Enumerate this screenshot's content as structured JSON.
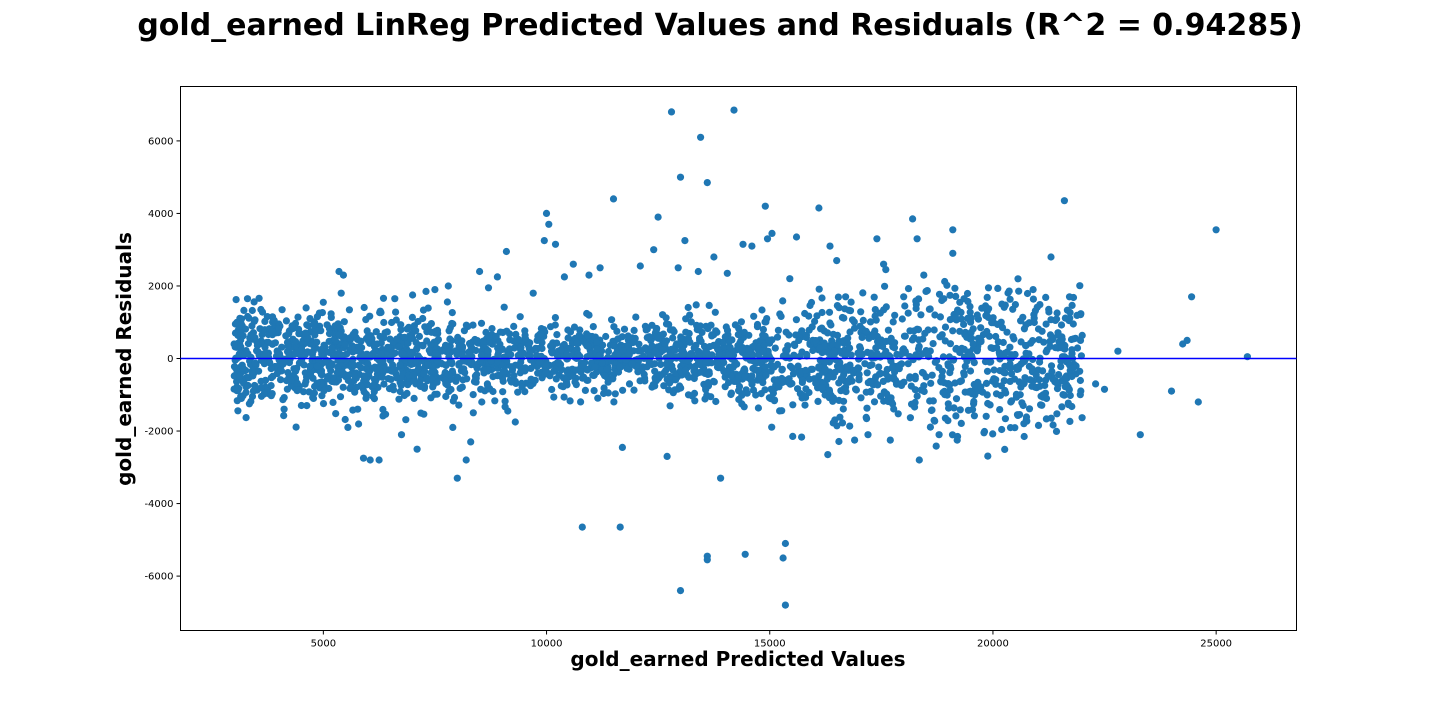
{
  "chart_data": {
    "type": "scatter",
    "title": "gold_earned LinReg Predicted Values and Residuals (R^2 = 0.94285)",
    "xlabel": "gold_earned Predicted Values",
    "ylabel": "gold_earned Residuals",
    "xlim": [
      1800,
      26800
    ],
    "ylim": [
      -7500,
      7500
    ],
    "xticks": [
      5000,
      10000,
      15000,
      20000,
      25000
    ],
    "yticks": [
      -6000,
      -4000,
      -2000,
      0,
      2000,
      4000,
      6000
    ],
    "grid": false,
    "colors": {
      "points": "#1f77b4",
      "reference_line": "#0000ff"
    },
    "reference_line": {
      "y": 0
    },
    "series": [
      {
        "points": [
          [
            3000,
            400
          ],
          [
            3150,
            700
          ],
          [
            3300,
            1650
          ],
          [
            3400,
            900
          ],
          [
            3550,
            -350
          ],
          [
            3600,
            1350
          ],
          [
            3900,
            1050
          ],
          [
            4100,
            -150
          ],
          [
            4300,
            900
          ],
          [
            4600,
            700
          ],
          [
            4700,
            1100
          ],
          [
            4800,
            -950
          ],
          [
            5000,
            1550
          ],
          [
            5350,
            2400
          ],
          [
            5400,
            1800
          ],
          [
            5450,
            2300
          ],
          [
            5550,
            -1900
          ],
          [
            5900,
            -2750
          ],
          [
            6050,
            -2800
          ],
          [
            6250,
            -2800
          ],
          [
            6600,
            1650
          ],
          [
            6750,
            -2100
          ],
          [
            7000,
            1750
          ],
          [
            7100,
            -2500
          ],
          [
            7300,
            1850
          ],
          [
            7500,
            1900
          ],
          [
            7800,
            2000
          ],
          [
            7900,
            -1900
          ],
          [
            8000,
            -3300
          ],
          [
            8200,
            -2800
          ],
          [
            8300,
            -2300
          ],
          [
            8500,
            2400
          ],
          [
            8700,
            1950
          ],
          [
            8900,
            2250
          ],
          [
            9100,
            2950
          ],
          [
            9300,
            -1750
          ],
          [
            9700,
            1800
          ],
          [
            9950,
            3250
          ],
          [
            10000,
            4000
          ],
          [
            10050,
            3700
          ],
          [
            10200,
            3150
          ],
          [
            10400,
            2250
          ],
          [
            10600,
            2600
          ],
          [
            10800,
            -4650
          ],
          [
            10950,
            2300
          ],
          [
            11200,
            2500
          ],
          [
            11500,
            4400
          ],
          [
            11650,
            -4650
          ],
          [
            11700,
            -2450
          ],
          [
            12100,
            2550
          ],
          [
            12400,
            3000
          ],
          [
            12500,
            3900
          ],
          [
            12700,
            -2700
          ],
          [
            12800,
            6800
          ],
          [
            12950,
            2500
          ],
          [
            13000,
            5000
          ],
          [
            13000,
            -6400
          ],
          [
            13100,
            3250
          ],
          [
            13400,
            2400
          ],
          [
            13450,
            6100
          ],
          [
            13600,
            4850
          ],
          [
            13600,
            -5450
          ],
          [
            13600,
            -5550
          ],
          [
            13750,
            2800
          ],
          [
            13900,
            -3300
          ],
          [
            14050,
            2350
          ],
          [
            14200,
            6850
          ],
          [
            14400,
            3150
          ],
          [
            14450,
            -5400
          ],
          [
            14600,
            3100
          ],
          [
            14900,
            4200
          ],
          [
            14950,
            3300
          ],
          [
            15050,
            3450
          ],
          [
            15300,
            -5500
          ],
          [
            15350,
            -5100
          ],
          [
            15350,
            -6800
          ],
          [
            15450,
            2200
          ],
          [
            15600,
            3350
          ],
          [
            16100,
            4150
          ],
          [
            16300,
            -2650
          ],
          [
            16350,
            3100
          ],
          [
            16500,
            2700
          ],
          [
            16700,
            1700
          ],
          [
            16900,
            -2250
          ],
          [
            17200,
            -2100
          ],
          [
            17400,
            3300
          ],
          [
            17550,
            2600
          ],
          [
            17600,
            2450
          ],
          [
            17700,
            -2250
          ],
          [
            18000,
            1700
          ],
          [
            18200,
            3850
          ],
          [
            18300,
            3300
          ],
          [
            18350,
            -2800
          ],
          [
            18450,
            2300
          ],
          [
            18500,
            1850
          ],
          [
            18700,
            1200
          ],
          [
            18900,
            1650
          ],
          [
            19100,
            3550
          ],
          [
            19100,
            2900
          ],
          [
            19200,
            -2250
          ],
          [
            19500,
            1000
          ],
          [
            19650,
            1200
          ],
          [
            19800,
            -2050
          ],
          [
            19900,
            1950
          ],
          [
            20200,
            1500
          ],
          [
            20400,
            -1200
          ],
          [
            20550,
            -1550
          ],
          [
            20700,
            -2150
          ],
          [
            20900,
            1900
          ],
          [
            21100,
            750
          ],
          [
            21200,
            -1100
          ],
          [
            21300,
            2800
          ],
          [
            21400,
            1050
          ],
          [
            21400,
            300
          ],
          [
            21600,
            4350
          ],
          [
            21600,
            50
          ],
          [
            21800,
            -250
          ],
          [
            22300,
            -700
          ],
          [
            22500,
            -850
          ],
          [
            22800,
            200
          ],
          [
            23300,
            -2100
          ],
          [
            24000,
            -900
          ],
          [
            24250,
            400
          ],
          [
            24350,
            500
          ],
          [
            24450,
            1700
          ],
          [
            24600,
            -1200
          ],
          [
            25000,
            3550
          ],
          [
            25700,
            50
          ]
        ]
      }
    ]
  }
}
